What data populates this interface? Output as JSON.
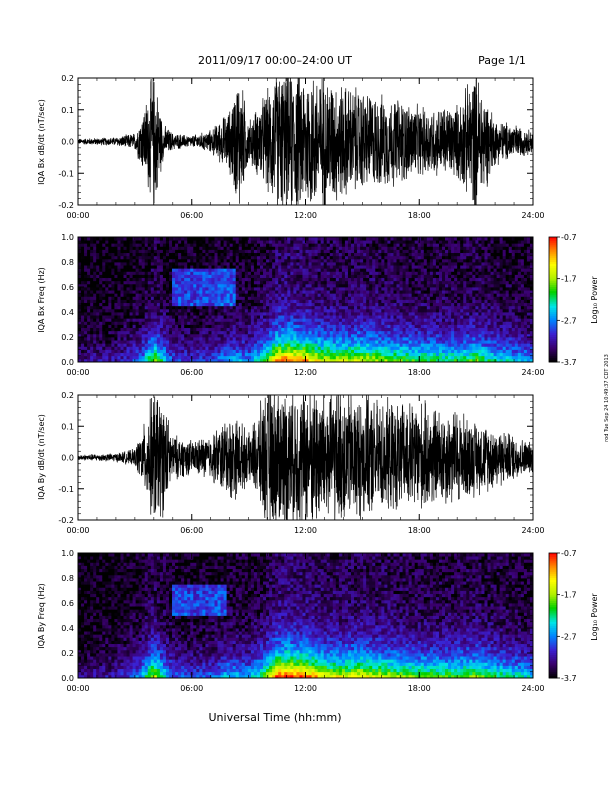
{
  "header": {
    "title": "2011/09/17  00:00–24:00 UT",
    "page": "Page 1/1"
  },
  "side_note": "rod Tue Sep 24 10:49:37 CDT 2013",
  "xlabel": "Universal Time (hh:mm)",
  "colorbar": {
    "label": "Log₁₀ Power",
    "ticks": [
      "-0.7",
      "-1.7",
      "-2.7",
      "-3.7"
    ],
    "range": [
      -3.7,
      -0.7
    ],
    "colors": [
      "#000000",
      "#3a006e",
      "#3b1fd0",
      "#0084ff",
      "#00e6e6",
      "#00d000",
      "#b0f000",
      "#ffff00",
      "#ff8800",
      "#ff0000"
    ]
  },
  "chart_data": [
    {
      "type": "line",
      "ylabel": "IQA Bx dB/dt (nT/sec)",
      "xlim": [
        "00:00",
        "24:00"
      ],
      "ylim": [
        -0.2,
        0.2
      ],
      "xticks": [
        "00:00",
        "06:00",
        "12:00",
        "18:00",
        "24:00"
      ],
      "yticks": [
        "0.2",
        "0.1",
        "0.0",
        "-0.1",
        "-0.2"
      ],
      "x_hours": [
        0,
        2,
        3,
        3.5,
        4,
        4.5,
        5,
        6,
        7,
        8,
        8.5,
        9,
        10,
        10.5,
        11,
        12,
        13,
        14,
        15,
        16,
        17,
        18,
        19,
        20,
        21,
        22,
        23,
        24
      ],
      "amplitude": [
        0.01,
        0.015,
        0.03,
        0.12,
        0.25,
        0.06,
        0.03,
        0.02,
        0.04,
        0.11,
        0.25,
        0.07,
        0.18,
        0.25,
        0.25,
        0.25,
        0.24,
        0.2,
        0.18,
        0.16,
        0.15,
        0.12,
        0.12,
        0.13,
        0.25,
        0.08,
        0.06,
        0.04
      ],
      "baseline": 0.0
    },
    {
      "type": "heatmap",
      "ylabel": "IQA Bx Freq (Hz)",
      "xlim": [
        "00:00",
        "24:00"
      ],
      "ylim": [
        0.0,
        1.0
      ],
      "xticks": [
        "00:00",
        "06:00",
        "12:00",
        "18:00",
        "24:00"
      ],
      "yticks": [
        "1.0",
        "0.8",
        "0.6",
        "0.4",
        "0.2",
        "0.0"
      ],
      "hours": [
        0,
        2,
        3.3,
        4,
        5,
        6,
        7,
        8,
        9,
        10,
        10.5,
        11,
        12,
        13,
        14,
        15,
        16,
        17,
        18,
        19,
        20,
        21,
        22,
        23,
        24
      ],
      "level": [
        0.12,
        0.15,
        0.25,
        0.55,
        0.22,
        0.2,
        0.22,
        0.32,
        0.3,
        0.5,
        0.75,
        0.8,
        0.72,
        0.6,
        0.58,
        0.6,
        0.55,
        0.5,
        0.48,
        0.45,
        0.45,
        0.5,
        0.4,
        0.35,
        0.3
      ],
      "pulsation_band": {
        "start_hour": 5.0,
        "end_hour": 8.3,
        "freq_low": 0.45,
        "freq_high": 0.75
      }
    },
    {
      "type": "line",
      "ylabel": "IQA By dB/dt (nT/sec)",
      "xlim": [
        "00:00",
        "24:00"
      ],
      "ylim": [
        -0.2,
        0.2
      ],
      "xticks": [
        "00:00",
        "06:00",
        "12:00",
        "18:00",
        "24:00"
      ],
      "yticks": [
        "0.2",
        "0.1",
        "0.0",
        "-0.1",
        "-0.2"
      ],
      "x_hours": [
        0,
        2,
        3,
        3.5,
        4,
        4.5,
        5,
        6,
        7,
        8,
        8.5,
        9,
        10,
        10.5,
        11,
        12,
        13,
        14,
        15,
        16,
        17,
        18,
        19,
        20,
        21,
        22,
        23,
        24
      ],
      "amplitude": [
        0.01,
        0.015,
        0.03,
        0.12,
        0.25,
        0.2,
        0.08,
        0.06,
        0.08,
        0.15,
        0.14,
        0.08,
        0.25,
        0.25,
        0.25,
        0.25,
        0.25,
        0.24,
        0.22,
        0.2,
        0.19,
        0.2,
        0.17,
        0.17,
        0.13,
        0.11,
        0.08,
        0.05
      ],
      "baseline": 0.0
    },
    {
      "type": "heatmap",
      "ylabel": "IQA By Freq (Hz)",
      "xlim": [
        "00:00",
        "24:00"
      ],
      "ylim": [
        0.0,
        1.0
      ],
      "xticks": [
        "00:00",
        "06:00",
        "12:00",
        "18:00",
        "24:00"
      ],
      "yticks": [
        "1.0",
        "0.8",
        "0.6",
        "0.4",
        "0.2",
        "0.0"
      ],
      "hours": [
        0,
        2,
        3.3,
        4,
        5,
        6,
        7,
        8,
        9,
        10,
        10.5,
        11,
        12,
        13,
        14,
        15,
        16,
        17,
        18,
        19,
        20,
        21,
        22,
        23,
        24
      ],
      "level": [
        0.12,
        0.15,
        0.28,
        0.6,
        0.25,
        0.22,
        0.25,
        0.35,
        0.32,
        0.55,
        0.8,
        0.85,
        0.78,
        0.65,
        0.62,
        0.65,
        0.6,
        0.55,
        0.52,
        0.5,
        0.5,
        0.55,
        0.45,
        0.4,
        0.35
      ],
      "pulsation_band": {
        "start_hour": 5.0,
        "end_hour": 7.8,
        "freq_low": 0.5,
        "freq_high": 0.75
      }
    }
  ]
}
